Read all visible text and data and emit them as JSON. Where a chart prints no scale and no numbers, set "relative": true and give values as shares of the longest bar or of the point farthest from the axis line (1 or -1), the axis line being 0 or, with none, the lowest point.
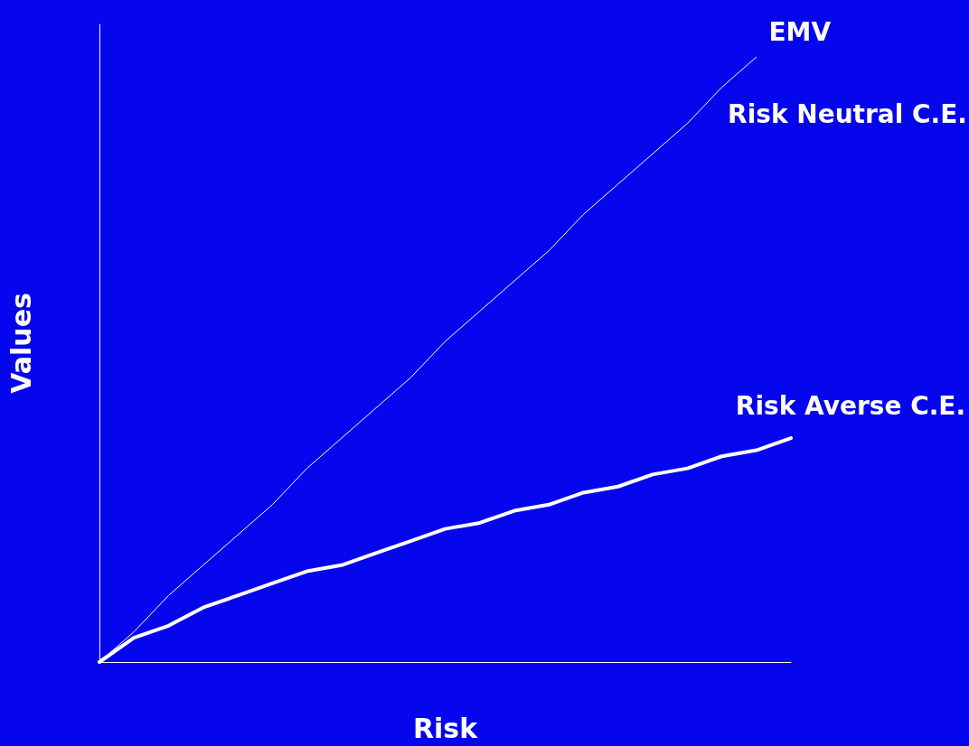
{
  "chart_data": {
    "type": "line",
    "relative": true,
    "xlabel": "Risk",
    "ylabel": "Values",
    "legend": false,
    "grid": false,
    "marker": "none",
    "line_style": "solid",
    "categories": [
      null,
      null,
      null,
      null,
      null,
      null,
      null,
      null,
      null,
      null,
      null,
      null,
      null,
      null,
      null,
      null,
      null,
      null,
      null,
      null,
      null
    ],
    "series": [
      {
        "name": "EMV",
        "color": "#ffffff",
        "values": [
          0,
          0.05,
          0.11,
          0.16,
          0.21,
          0.26,
          0.32,
          0.37,
          0.42,
          0.47,
          0.53,
          0.58,
          0.63,
          0.68,
          0.74,
          0.79,
          0.84,
          0.89,
          0.95,
          1,
          null
        ]
      },
      {
        "name": "Risk Averse C.E.",
        "color": "#ffffff",
        "values": [
          0,
          0.04,
          0.06,
          0.09,
          0.11,
          0.13,
          0.15,
          0.16,
          0.18,
          0.2,
          0.22,
          0.23,
          0.25,
          0.26,
          0.28,
          0.29,
          0.31,
          0.32,
          0.34,
          0.35,
          0.37
        ]
      }
    ],
    "annotations": [
      "Risk Neutral C.E."
    ]
  }
}
